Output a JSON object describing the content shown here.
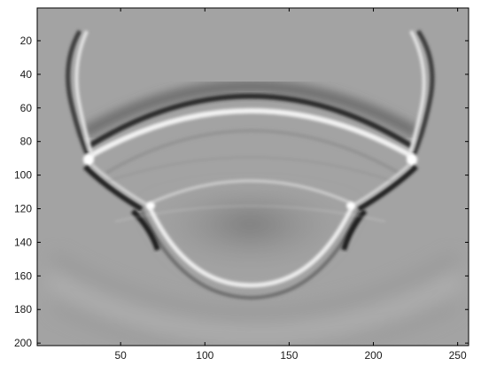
{
  "figure": {
    "type": "image",
    "colormap": "gray",
    "background": "#ffffff",
    "x_axis": {
      "range": [
        1,
        256
      ],
      "ticks": [
        50,
        100,
        150,
        200,
        250
      ],
      "tick_labels": [
        "50",
        "100",
        "150",
        "200",
        "250"
      ]
    },
    "y_axis": {
      "range": [
        1,
        201
      ],
      "direction": "reverse",
      "ticks": [
        20,
        40,
        60,
        80,
        100,
        120,
        140,
        160,
        180,
        200
      ],
      "tick_labels": [
        "20",
        "40",
        "60",
        "80",
        "100",
        "120",
        "140",
        "160",
        "180",
        "200"
      ]
    }
  }
}
